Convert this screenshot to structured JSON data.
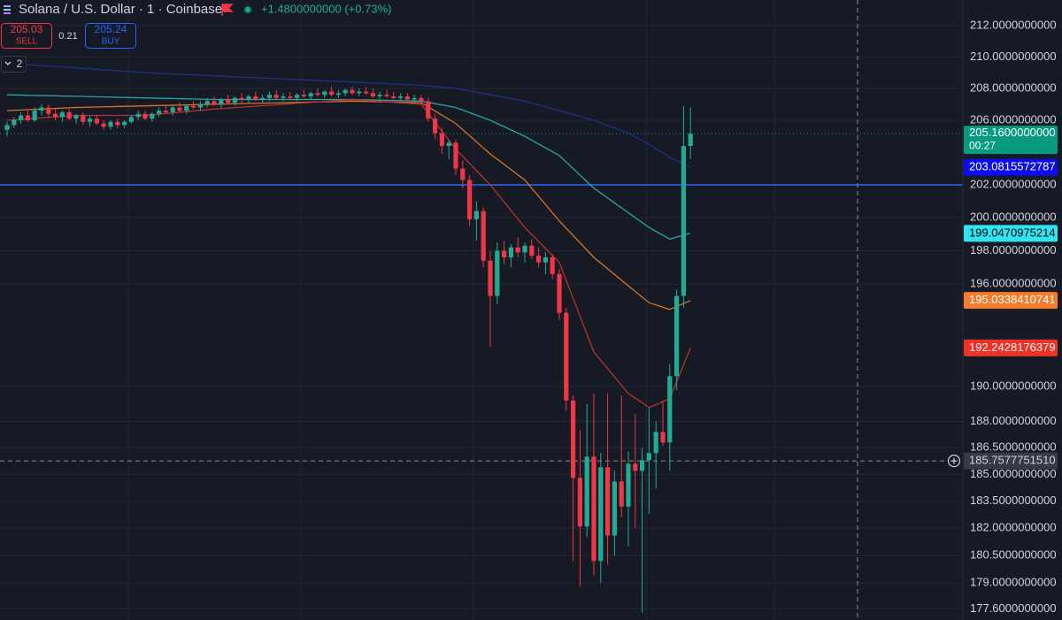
{
  "chart_data": {
    "type": "candlestick",
    "title": "Solana / U.S. Dollar · 1 · Coinbase",
    "change_label": "+1.4800000000 (+0.73%)",
    "sell_price": 205.03,
    "sell_label": "SELL",
    "spread": 0.21,
    "buy_price": 205.24,
    "buy_label": "BUY",
    "indicator_count": 2,
    "log": true,
    "grid": true,
    "up_color": "#22ab94",
    "down_color": "#f23645",
    "ylim": [
      177.0,
      213.66
    ],
    "yticks": [
      {
        "value": 212,
        "label": "212.0000000000"
      },
      {
        "value": 210,
        "label": "210.0000000000"
      },
      {
        "value": 208,
        "label": "208.0000000000"
      },
      {
        "value": 206,
        "label": "206.0000000000"
      },
      {
        "value": 202,
        "label": "202.0000000000"
      },
      {
        "value": 200,
        "label": "200.0000000000"
      },
      {
        "value": 198,
        "label": "198.0000000000"
      },
      {
        "value": 196,
        "label": "196.0000000000"
      },
      {
        "value": 190,
        "label": "190.0000000000"
      },
      {
        "value": 188,
        "label": "188.0000000000"
      },
      {
        "value": 186.5,
        "label": "186.5000000000"
      },
      {
        "value": 185,
        "label": "185.0000000000"
      },
      {
        "value": 183.5,
        "label": "183.5000000000"
      },
      {
        "value": 182,
        "label": "182.0000000000"
      },
      {
        "value": 180.5,
        "label": "180.5000000000"
      },
      {
        "value": 179,
        "label": "179.0000000000"
      },
      {
        "value": 177.6,
        "label": "177.6000000000"
      }
    ],
    "ohlc": [
      [
        205.4,
        205.9,
        205.0,
        205.7
      ],
      [
        205.7,
        206.2,
        205.5,
        206.0
      ],
      [
        206.0,
        206.5,
        205.8,
        206.3
      ],
      [
        206.3,
        206.6,
        205.9,
        206.0
      ],
      [
        206.0,
        206.8,
        205.9,
        206.6
      ],
      [
        206.6,
        207.0,
        206.3,
        206.8
      ],
      [
        206.8,
        207.0,
        206.2,
        206.4
      ],
      [
        206.4,
        206.7,
        206.0,
        206.2
      ],
      [
        206.2,
        206.6,
        205.9,
        206.5
      ],
      [
        206.5,
        206.7,
        206.0,
        206.1
      ],
      [
        206.1,
        206.4,
        205.8,
        206.3
      ],
      [
        206.3,
        206.5,
        205.7,
        205.9
      ],
      [
        205.9,
        206.3,
        205.6,
        206.1
      ],
      [
        206.1,
        206.3,
        205.7,
        205.8
      ],
      [
        205.8,
        206.0,
        205.4,
        205.6
      ],
      [
        205.6,
        206.0,
        205.4,
        205.9
      ],
      [
        205.9,
        206.1,
        205.5,
        205.7
      ],
      [
        205.7,
        206.0,
        205.5,
        205.9
      ],
      [
        205.9,
        206.3,
        205.8,
        206.2
      ],
      [
        206.2,
        206.6,
        206.0,
        206.4
      ],
      [
        206.4,
        206.6,
        206.0,
        206.1
      ],
      [
        206.1,
        206.5,
        205.9,
        206.4
      ],
      [
        206.4,
        206.8,
        206.2,
        206.6
      ],
      [
        206.6,
        206.9,
        206.4,
        206.5
      ],
      [
        206.5,
        206.9,
        206.3,
        206.8
      ],
      [
        206.8,
        207.1,
        206.5,
        206.6
      ],
      [
        206.6,
        207.0,
        206.4,
        206.9
      ],
      [
        206.9,
        207.2,
        206.7,
        206.8
      ],
      [
        206.8,
        207.2,
        206.6,
        207.0
      ],
      [
        207.0,
        207.4,
        206.8,
        207.2
      ],
      [
        207.2,
        207.5,
        206.9,
        207.0
      ],
      [
        207.0,
        207.4,
        206.8,
        207.3
      ],
      [
        207.3,
        207.6,
        207.0,
        207.1
      ],
      [
        207.1,
        207.5,
        206.9,
        207.4
      ],
      [
        207.4,
        207.7,
        207.1,
        207.3
      ],
      [
        207.3,
        207.6,
        207.1,
        207.5
      ],
      [
        207.5,
        207.8,
        207.2,
        207.3
      ],
      [
        207.3,
        207.6,
        207.1,
        207.4
      ],
      [
        207.4,
        207.8,
        207.2,
        207.6
      ],
      [
        207.6,
        207.9,
        207.3,
        207.4
      ],
      [
        207.4,
        207.7,
        207.2,
        207.5
      ],
      [
        207.5,
        207.8,
        207.3,
        207.4
      ],
      [
        207.4,
        207.7,
        207.2,
        207.6
      ],
      [
        207.6,
        207.9,
        207.4,
        207.5
      ],
      [
        207.5,
        207.8,
        207.3,
        207.7
      ],
      [
        207.7,
        208.0,
        207.5,
        207.6
      ],
      [
        207.6,
        207.9,
        207.4,
        207.8
      ],
      [
        207.8,
        208.1,
        207.5,
        207.6
      ],
      [
        207.6,
        207.9,
        207.4,
        207.7
      ],
      [
        207.7,
        208.0,
        207.5,
        207.9
      ],
      [
        207.9,
        208.1,
        207.6,
        207.7
      ],
      [
        207.7,
        208.0,
        207.5,
        207.8
      ],
      [
        207.8,
        208.1,
        207.6,
        207.7
      ],
      [
        207.7,
        208.0,
        207.4,
        207.5
      ],
      [
        207.5,
        207.8,
        207.3,
        207.6
      ],
      [
        207.6,
        207.9,
        207.4,
        207.5
      ],
      [
        207.5,
        207.8,
        207.3,
        207.4
      ],
      [
        207.4,
        207.7,
        207.2,
        207.5
      ],
      [
        207.5,
        207.7,
        207.2,
        207.3
      ],
      [
        207.3,
        207.6,
        207.1,
        207.4
      ],
      [
        207.4,
        207.6,
        207.0,
        207.2
      ],
      [
        207.2,
        207.4,
        205.9,
        206.1
      ],
      [
        206.1,
        206.4,
        204.8,
        205.2
      ],
      [
        205.2,
        205.5,
        203.9,
        204.4
      ],
      [
        204.4,
        204.8,
        203.6,
        204.6
      ],
      [
        204.6,
        204.8,
        202.6,
        203.0
      ],
      [
        203.0,
        203.5,
        201.8,
        202.3
      ],
      [
        202.3,
        202.6,
        199.5,
        199.9
      ],
      [
        199.9,
        201.0,
        198.6,
        200.4
      ],
      [
        200.4,
        200.6,
        197.0,
        197.4
      ],
      [
        197.4,
        198.0,
        192.3,
        195.3
      ],
      [
        195.3,
        198.5,
        194.8,
        198.0
      ],
      [
        198.0,
        198.6,
        197.2,
        197.6
      ],
      [
        197.6,
        198.4,
        197.0,
        198.2
      ],
      [
        198.2,
        198.8,
        197.6,
        197.9
      ],
      [
        197.9,
        198.5,
        197.3,
        198.3
      ],
      [
        198.3,
        198.7,
        197.5,
        197.7
      ],
      [
        197.7,
        198.2,
        197.0,
        197.3
      ],
      [
        197.3,
        197.9,
        196.6,
        197.6
      ],
      [
        197.6,
        197.8,
        196.3,
        196.6
      ],
      [
        196.6,
        196.9,
        193.9,
        194.3
      ],
      [
        194.3,
        194.6,
        188.6,
        189.2
      ],
      [
        189.2,
        189.5,
        180.2,
        184.8
      ],
      [
        184.8,
        187.5,
        178.8,
        182.1
      ],
      [
        182.1,
        189.0,
        181.5,
        186.0
      ],
      [
        186.0,
        189.6,
        179.4,
        180.2
      ],
      [
        180.2,
        186.2,
        179.0,
        185.4
      ],
      [
        185.4,
        189.6,
        180.0,
        181.6
      ],
      [
        181.6,
        185.2,
        180.5,
        184.6
      ],
      [
        184.6,
        189.5,
        182.6,
        183.2
      ],
      [
        183.2,
        186.3,
        181.0,
        185.6
      ],
      [
        185.6,
        188.4,
        182.0,
        185.2
      ],
      [
        185.2,
        186.5,
        177.4,
        185.8
      ],
      [
        185.8,
        188.8,
        182.8,
        186.2
      ],
      [
        186.2,
        188.0,
        184.2,
        187.4
      ],
      [
        187.4,
        189.2,
        186.6,
        186.8
      ],
      [
        186.8,
        191.3,
        185.2,
        190.6
      ],
      [
        190.6,
        195.7,
        189.8,
        195.3
      ],
      [
        195.3,
        206.9,
        194.6,
        204.4
      ],
      [
        204.4,
        206.8,
        203.6,
        205.16
      ]
    ],
    "x": [
      0,
      10,
      20,
      30,
      40,
      50,
      60,
      65,
      70,
      75,
      80,
      85,
      90,
      93,
      96,
      99
    ],
    "series": [
      {
        "color": "#1f2f86",
        "values": [
          209.6,
          209.3,
          209.0,
          208.8,
          208.6,
          208.4,
          208.2,
          208.0,
          207.6,
          207.2,
          206.6,
          206.0,
          205.2,
          204.5,
          203.7,
          203.08
        ]
      },
      {
        "color": "#2aa3a8",
        "values": [
          207.6,
          207.5,
          207.4,
          207.3,
          207.3,
          207.3,
          207.2,
          206.8,
          206.0,
          205.0,
          203.8,
          201.8,
          200.3,
          199.4,
          198.7,
          199.05
        ]
      },
      {
        "color": "#d9722a",
        "values": [
          206.6,
          206.8,
          206.9,
          207.0,
          207.1,
          207.2,
          207.1,
          205.8,
          203.9,
          202.3,
          199.8,
          197.6,
          195.9,
          194.9,
          194.5,
          195.03
        ]
      },
      {
        "color": "#b8332c",
        "values": [
          206.0,
          206.3,
          206.3,
          206.7,
          207.0,
          207.3,
          207.0,
          204.2,
          202.0,
          199.4,
          197.3,
          192.0,
          189.6,
          188.8,
          189.3,
          192.24
        ]
      }
    ],
    "hline": {
      "value": 202,
      "color": "#2962ff"
    },
    "price_tags": [
      {
        "value": 205.16,
        "label": "205.1600000000",
        "color": "#089981",
        "text_color": "#ffffff",
        "countdown": "00:27"
      },
      {
        "value": 203.0815572787,
        "label": "203.0815572787",
        "color": "#0c0cf0",
        "text_color": "#ffffff"
      },
      {
        "value": 199.0470975214,
        "label": "199.0470975214",
        "color": "#2ee6f2",
        "text_color": "#000000"
      },
      {
        "value": 195.0338410741,
        "label": "195.0338410741",
        "color": "#f57c2a",
        "text_color": "#ffffff"
      },
      {
        "value": 192.2428176379,
        "label": "192.2428176379",
        "color": "#f23024",
        "text_color": "#ffffff"
      }
    ],
    "crosshair": {
      "value": 185.757775151,
      "label": "185.7577751510"
    }
  }
}
